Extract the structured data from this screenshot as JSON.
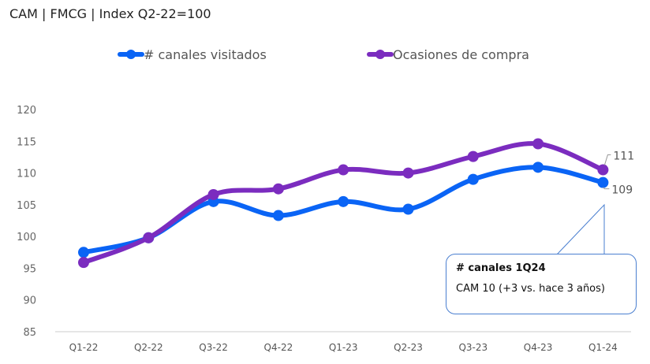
{
  "chart_data": {
    "type": "line",
    "title": "CAM | FMCG | Index Q2-22=100",
    "categories": [
      "Q1-22",
      "Q2-22",
      "Q3-22",
      "Q4-22",
      "Q1-23",
      "Q2-23",
      "Q3-23",
      "Q4-23",
      "Q1-24"
    ],
    "series": [
      {
        "name": "# canales visitados",
        "color": "#0a64f5",
        "values": [
          97.5,
          99.8,
          105.5,
          103.3,
          105.5,
          104.3,
          109.0,
          110.9,
          108.5
        ],
        "end_label": "109"
      },
      {
        "name": "Ocasiones de compra",
        "color": "#7b2cbf",
        "values": [
          95.9,
          99.8,
          106.6,
          107.5,
          110.5,
          110.0,
          112.6,
          114.6,
          110.5
        ],
        "end_label": "111"
      }
    ],
    "yticks": [
      "120",
      "115",
      "110",
      "105",
      "100",
      "95",
      "90",
      "85"
    ],
    "ylim": [
      85,
      120
    ],
    "grid": false,
    "legend": "top",
    "annotation": {
      "heading": "# canales 1Q24",
      "body": "CAM 10  (+3 vs. hace 3 años)"
    }
  }
}
